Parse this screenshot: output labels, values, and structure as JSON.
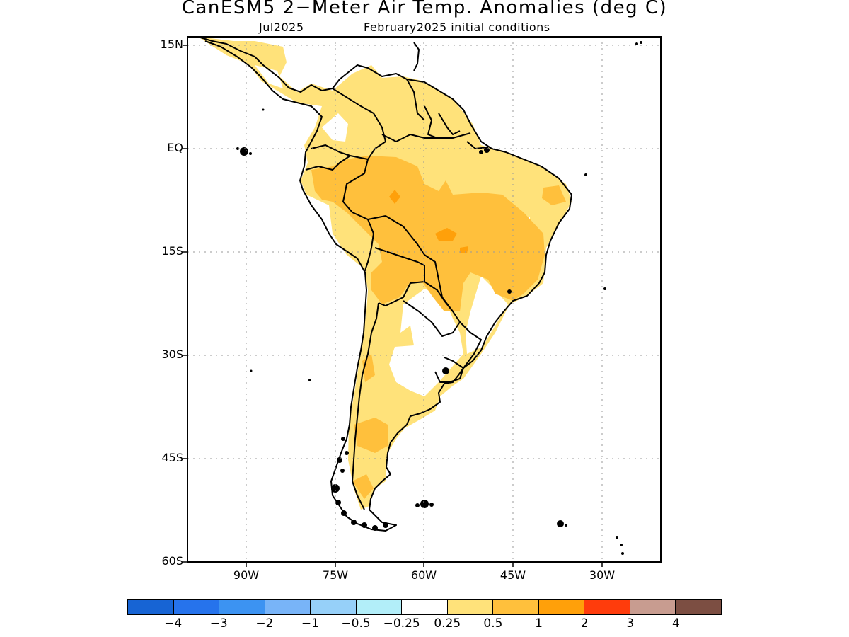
{
  "title": "CanESM5 2−Meter Air Temp. Anomalies (deg C)",
  "subtitle_left": "Jul2025",
  "subtitle_right": "February2025 initial conditions",
  "lat_labels": [
    "15N",
    "EQ",
    "15S",
    "30S",
    "45S",
    "60S"
  ],
  "lon_labels": [
    "90W",
    "75W",
    "60W",
    "45W",
    "30W"
  ],
  "colorbar": {
    "colors": [
      "#1764d4",
      "#2673ec",
      "#3c93f2",
      "#78b4f8",
      "#96d0f9",
      "#b2eef9",
      "#ffffff",
      "#ffe27a",
      "#ffc03c",
      "#ffa00a",
      "#ff3c0c",
      "#c89c90",
      "#7c4e42"
    ],
    "labels": [
      "−4",
      "−3",
      "−2",
      "−1",
      "−0.5",
      "−0.25",
      "0.25",
      "0.5",
      "1",
      "2",
      "3",
      "4"
    ]
  },
  "map_colors": {
    "light": "#ffe27a",
    "medium": "#ffc03c",
    "strong": "#ffa00a"
  }
}
